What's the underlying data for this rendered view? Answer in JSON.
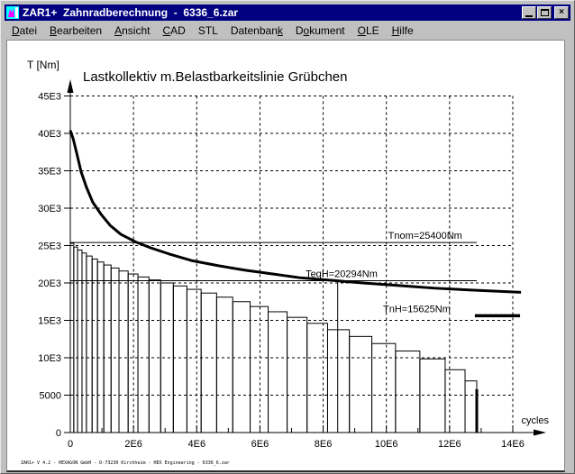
{
  "window": {
    "title": "ZAR1+  Zahnradberechnung  -  6336_6.zar",
    "controls": {
      "minimize": "minimize",
      "maximize": "maximize",
      "close": "×"
    }
  },
  "menu": {
    "items": [
      {
        "label": "Datei",
        "underline": 0
      },
      {
        "label": "Bearbeiten",
        "underline": 0
      },
      {
        "label": "Ansicht",
        "underline": 0
      },
      {
        "label": "CAD",
        "underline": 0
      },
      {
        "label": "STL",
        "underline": -1
      },
      {
        "label": "Datenbank",
        "underline": 8
      },
      {
        "label": "Dokument",
        "underline": 1
      },
      {
        "label": "OLE",
        "underline": 0
      },
      {
        "label": "Hilfe",
        "underline": 0
      }
    ]
  },
  "statusbar": {
    "text": "ZAR1+ V 4.2 - HEXAGON GmbH - D-73230 Kirchheim - HEX Engineering - 6336_6.zar"
  },
  "colors": {
    "titlebar": "#000080",
    "titlebar_text": "#ffffff",
    "chrome": "#c0c0c0",
    "canvas": "#ffffff",
    "ink": "#000000",
    "icon_cyan": "#00ffff",
    "icon_magenta": "#ff00ff"
  },
  "chart_data": {
    "type": "bar",
    "subtype": "load-collective-with-capacity-line",
    "title": "Lastkollektiv m.Belastbarkeitslinie Grübchen",
    "ylabel": "T [Nm]",
    "xlabel": "cycles",
    "grid": "dashed",
    "xlim_E6": [
      0,
      14.8
    ],
    "ylim": [
      0,
      47000
    ],
    "y_ticks": [
      {
        "v": 0,
        "label": "0"
      },
      {
        "v": 5000,
        "label": "5000"
      },
      {
        "v": 10000,
        "label": "10E3"
      },
      {
        "v": 15000,
        "label": "15E3"
      },
      {
        "v": 20000,
        "label": "20E3"
      },
      {
        "v": 25000,
        "label": "25E3"
      },
      {
        "v": 30000,
        "label": "30E3"
      },
      {
        "v": 35000,
        "label": "35E3"
      },
      {
        "v": 40000,
        "label": "40E3"
      },
      {
        "v": 45000,
        "label": "45E3"
      }
    ],
    "x_ticks": [
      {
        "v": 0,
        "label": "0"
      },
      {
        "v": 2,
        "label": "2E6"
      },
      {
        "v": 4,
        "label": "4E6"
      },
      {
        "v": 6,
        "label": "6E6"
      },
      {
        "v": 8,
        "label": "8E6"
      },
      {
        "v": 10,
        "label": "10E6"
      },
      {
        "v": 12,
        "label": "12E6"
      },
      {
        "v": 14,
        "label": "14E6"
      }
    ],
    "x_minor_ticks_E6": [
      1,
      3,
      5,
      7,
      9,
      11,
      13
    ],
    "grid_x_to_E6": 14,
    "load_collective_bars": {
      "edges_E6": [
        0,
        0.11,
        0.23,
        0.37,
        0.51,
        0.69,
        0.86,
        1.06,
        1.29,
        1.54,
        1.83,
        2.14,
        2.49,
        2.86,
        3.26,
        3.69,
        4.14,
        4.63,
        5.14,
        5.69,
        6.26,
        6.86,
        7.49,
        8.14,
        8.83,
        9.54,
        10.29,
        11.06,
        11.86,
        12.49,
        12.86
      ],
      "tops_Nm": [
        25300,
        24800,
        24400,
        24000,
        23600,
        23200,
        22800,
        22400,
        22000,
        21600,
        21200,
        20800,
        20400,
        20000,
        19600,
        19150,
        18650,
        18100,
        17500,
        16850,
        16150,
        15400,
        14600,
        13750,
        12850,
        11900,
        10900,
        9850,
        8400,
        6900
      ]
    },
    "capacity_line": {
      "name": "Belastbarkeitslinie Grübchen",
      "points_E6_Nm": [
        [
          0,
          40400
        ],
        [
          0.09,
          39300
        ],
        [
          0.2,
          37400
        ],
        [
          0.34,
          34900
        ],
        [
          0.51,
          32800
        ],
        [
          0.71,
          30800
        ],
        [
          0.97,
          29200
        ],
        [
          1.26,
          27700
        ],
        [
          1.6,
          26500
        ],
        [
          2.06,
          25500
        ],
        [
          2.54,
          24700
        ],
        [
          3.11,
          23900
        ],
        [
          3.83,
          23000
        ],
        [
          4.69,
          22300
        ],
        [
          5.54,
          21700
        ],
        [
          6.4,
          21200
        ],
        [
          7.26,
          20700
        ],
        [
          8.11,
          20400
        ],
        [
          9.26,
          20000
        ],
        [
          10.4,
          19650
        ],
        [
          11.54,
          19300
        ],
        [
          12.69,
          19050
        ],
        [
          14.26,
          18750
        ]
      ]
    },
    "ref_lines": [
      {
        "id": "tnom",
        "label": "Tnom=25400Nm",
        "value_Nm": 25400,
        "x_from_E6": 0,
        "x_to_E6": 12.86,
        "thick": false,
        "label_end_x_E6": 12.4
      },
      {
        "id": "teqh",
        "label": "TeqH=20294Nm",
        "value_Nm": 20294,
        "x_from_E6": 0,
        "x_to_E6": 12.86,
        "thick": false,
        "label_end_x_E6": 9.72
      },
      {
        "id": "tnh",
        "label": "TnH=15625Nm",
        "value_Nm": 15625,
        "x_from_E6": 12.8,
        "x_to_E6": 14.23,
        "thick": true,
        "label_end_x_E6": 12.03
      }
    ],
    "markers": [
      {
        "id": "neq-marker",
        "x_E6": 8.46,
        "y_from_Nm": 0,
        "y_to_Nm": 20294,
        "thick": false
      },
      {
        "id": "collective-end-marker",
        "x_E6": 12.86,
        "y_from_Nm": 0,
        "y_to_Nm": 5800,
        "thick": true
      }
    ]
  }
}
